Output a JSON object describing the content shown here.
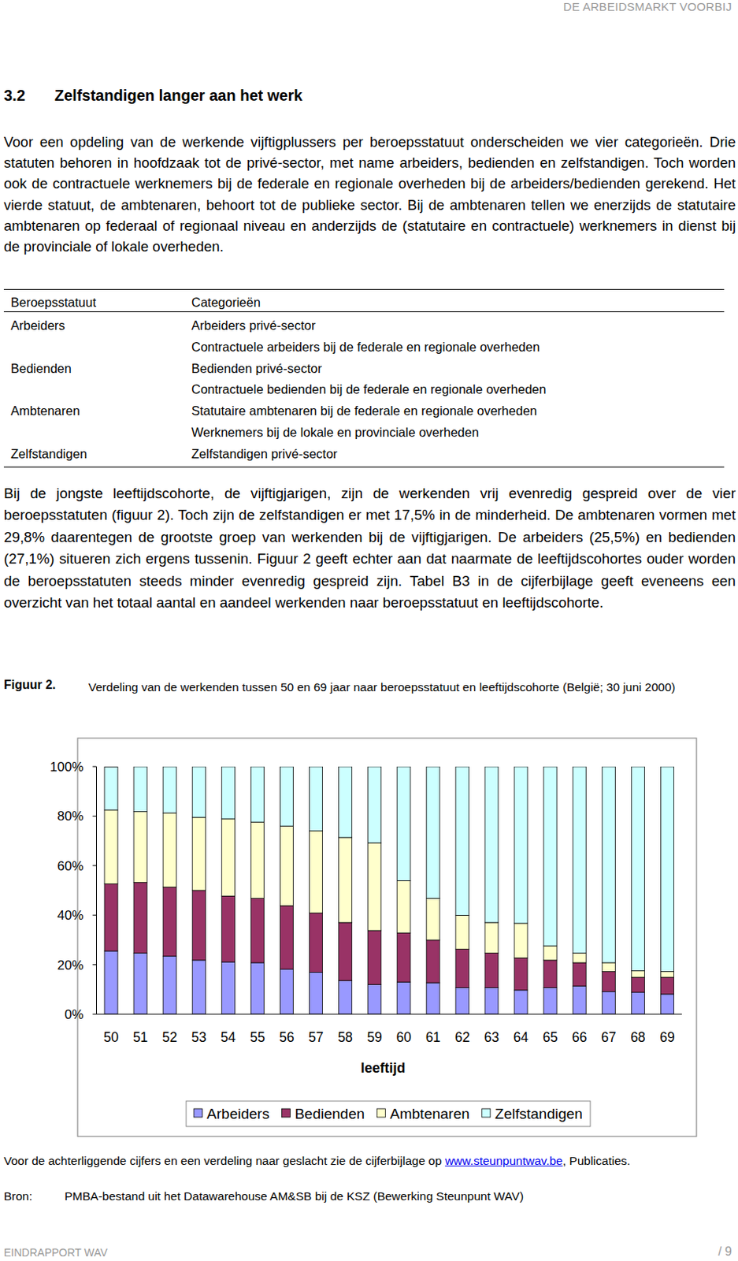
{
  "header": {
    "running_title": "DE ARBEIDSMARKT VOORBIJ"
  },
  "section": {
    "number": "3.2",
    "title": "Zelfstandigen langer aan het werk"
  },
  "intro": "Voor een opdeling van de werkende vijftigplussers per beroepsstatuut onderscheiden we vier categorieën. Drie statuten behoren in hoofdzaak tot de privé-sector, met name arbeiders, bedienden en zelfstandigen. Toch worden ook de contractuele werknemers bij de federale en regionale overheden bij de arbeiders/bedienden gerekend. Het vierde statuut, de ambtenaren, behoort tot de publieke sector. Bij de ambtenaren tellen we enerzijds de statutaire ambtenaren op federaal of regionaal niveau en anderzijds de (statutaire en contractuele) werknemers in dienst bij de provinciale of lokale overheden.",
  "table": {
    "header": [
      "Beroepsstatuut",
      "Categorieën"
    ],
    "rows": [
      {
        "status": "Arbeiders",
        "categories": [
          "Arbeiders privé-sector",
          "Contractuele arbeiders bij de federale en regionale overheden"
        ]
      },
      {
        "status": "Bedienden",
        "categories": [
          "Bedienden privé-sector",
          "Contractuele bedienden bij de federale en regionale overheden"
        ]
      },
      {
        "status": "Ambtenaren",
        "categories": [
          "Statutaire ambtenaren bij de federale en regionale overheden",
          "Werknemers bij de lokale en provinciale overheden"
        ]
      },
      {
        "status": "Zelfstandigen",
        "categories": [
          "Zelfstandigen privé-sector"
        ]
      }
    ]
  },
  "body": "Bij de jongste leeftijdscohorte, de vijftigjarigen, zijn de werkenden vrij evenredig gespreid over de vier beroepsstatuten (figuur 2). Toch zijn de zelfstandigen er met 17,5% in de minderheid. De ambtenaren vormen met 29,8% daarentegen de grootste groep van werkenden bij de vijftigjarigen. De arbeiders (25,5%) en bedienden (27,1%) situeren zich ergens tussenin. Figuur 2 geeft echter aan dat naarmate de leeftijdscohortes ouder worden de beroepsstatuten steeds minder evenredig gespreid zijn. Tabel B3 in de cijferbijlage geeft eveneens een overzicht van het totaal aantal en aandeel werkenden naar beroepsstatuut en leeftijdscohorte.",
  "figure": {
    "label": "Figuur 2."
  },
  "chart_data": {
    "type": "bar",
    "stacked": true,
    "title": "Verdeling van de werkenden tussen 50 en 69 jaar naar beroepsstatuut en leeftijdscohorte (België; 30 juni 2000)",
    "x_label": "leeftijd",
    "categories": [
      "50",
      "51",
      "52",
      "53",
      "54",
      "55",
      "56",
      "57",
      "58",
      "59",
      "60",
      "61",
      "62",
      "63",
      "64",
      "65",
      "66",
      "67",
      "68",
      "69"
    ],
    "series": [
      {
        "name": "Arbeiders",
        "color": "#9999ff",
        "values": [
          25.5,
          24.7,
          23.4,
          21.8,
          21.1,
          20.8,
          18.2,
          16.9,
          13.6,
          12.0,
          13.0,
          12.7,
          10.7,
          10.7,
          9.7,
          10.7,
          11.4,
          9.1,
          8.8,
          8.1
        ]
      },
      {
        "name": "Bedienden",
        "color": "#993366",
        "values": [
          27.1,
          28.5,
          27.9,
          28.2,
          26.6,
          26.0,
          25.6,
          24.0,
          23.4,
          21.8,
          19.8,
          17.2,
          15.6,
          14.0,
          13.0,
          11.1,
          9.4,
          8.1,
          6.1,
          6.8
        ]
      },
      {
        "name": "Ambtenaren",
        "color": "#ffffcc",
        "values": [
          29.8,
          28.6,
          29.9,
          29.5,
          31.2,
          30.8,
          32.2,
          33.1,
          34.4,
          35.4,
          21.1,
          16.9,
          13.6,
          12.3,
          14.0,
          5.8,
          3.9,
          3.6,
          2.6,
          2.3
        ]
      },
      {
        "name": "Zelfstandigen",
        "color": "#ccffff",
        "values": [
          17.5,
          18.2,
          18.8,
          20.5,
          21.1,
          22.4,
          24.0,
          26.0,
          28.6,
          30.8,
          46.1,
          53.2,
          60.1,
          63.0,
          63.3,
          72.4,
          75.3,
          79.2,
          82.5,
          82.8
        ]
      }
    ],
    "ylim": [
      0,
      100
    ],
    "yticks": [
      {
        "value": 0,
        "label": "0%"
      },
      {
        "value": 20,
        "label": "20%"
      },
      {
        "value": 40,
        "label": "40%"
      },
      {
        "value": 60,
        "label": "60%"
      },
      {
        "value": 80,
        "label": "80%"
      },
      {
        "value": 100,
        "label": "100%"
      }
    ],
    "grid": false,
    "legend": "bottom"
  },
  "footnote": {
    "text": "Voor de achterliggende cijfers en een verdeling naar geslacht zie de cijferbijlage op ",
    "link": "www.steunpuntwav.be",
    "after": ", Publicaties."
  },
  "source": {
    "label": "Bron:",
    "text": "PMBA-bestand uit het Datawarehouse AM&SB bij de KSZ (Bewerking Steunpunt WAV)"
  },
  "footer": {
    "left": "EINDRAPPORT WAV",
    "page": "/ 9"
  }
}
